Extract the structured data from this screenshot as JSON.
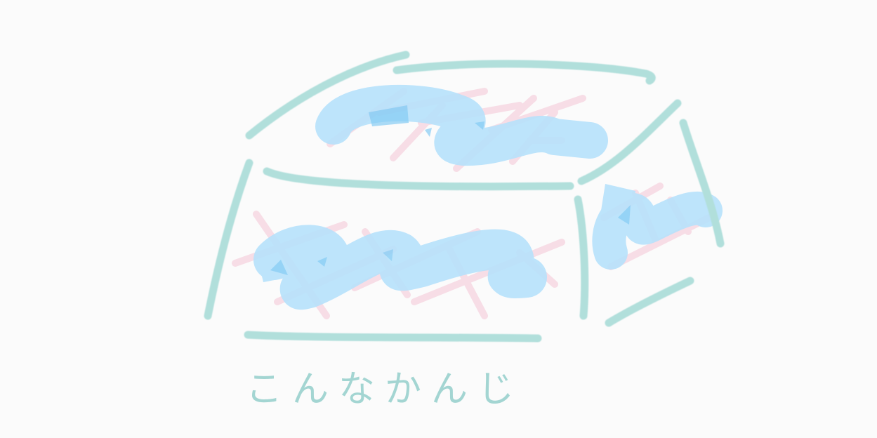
{
  "caption": "こんなかんじ",
  "colors": {
    "background": "#fbfbfb",
    "outline": "#b1dfdb",
    "fill": "#b6e1fb",
    "fill_dark": "#78c6f2",
    "hatch": "#f6d4df",
    "caption": "#9fd3d0"
  }
}
